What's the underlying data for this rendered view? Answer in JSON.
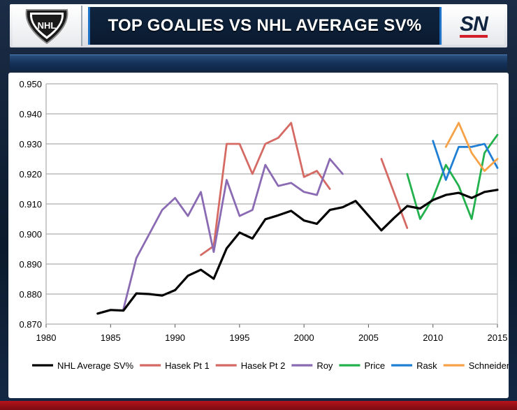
{
  "header": {
    "title": "TOP GOALIES VS NHL AVERAGE SV%",
    "network_logo_text": "SN",
    "league_logo_text": "NHL",
    "colors": {
      "title_band": "#0c2038",
      "accent": "#1e73c8",
      "brand_red": "#d41f2b"
    }
  },
  "chart_data": {
    "type": "line",
    "title": "",
    "xlabel": "",
    "ylabel": "",
    "xlim": [
      1980,
      2015
    ],
    "ylim": [
      0.87,
      0.95
    ],
    "x_ticks": [
      1980,
      1985,
      1990,
      1995,
      2000,
      2005,
      2010,
      2015
    ],
    "y_ticks": [
      "0.870",
      "0.880",
      "0.890",
      "0.900",
      "0.910",
      "0.920",
      "0.930",
      "0.940",
      "0.950"
    ],
    "grid": "horizontal",
    "legend_position": "bottom",
    "series": [
      {
        "name": "NHL Average SV%",
        "color": "#000000",
        "points": [
          [
            1984,
            0.8735
          ],
          [
            1985,
            0.8747
          ],
          [
            1986,
            0.8745
          ],
          [
            1987,
            0.8802
          ],
          [
            1988,
            0.88
          ],
          [
            1989,
            0.8795
          ],
          [
            1990,
            0.8813
          ],
          [
            1991,
            0.8861
          ],
          [
            1992,
            0.8881
          ],
          [
            1993,
            0.8851
          ],
          [
            1994,
            0.8952
          ],
          [
            1995,
            0.9005
          ],
          [
            1996,
            0.8985
          ],
          [
            1997,
            0.9049
          ],
          [
            1998,
            0.9062
          ],
          [
            1999,
            0.9077
          ],
          [
            2000,
            0.9045
          ],
          [
            2001,
            0.9034
          ],
          [
            2002,
            0.908
          ],
          [
            2003,
            0.9089
          ],
          [
            2004,
            0.911
          ],
          [
            2006,
            0.9012
          ],
          [
            2007,
            0.9054
          ],
          [
            2008,
            0.9093
          ],
          [
            2009,
            0.9085
          ],
          [
            2010,
            0.9113
          ],
          [
            2011,
            0.913
          ],
          [
            2012,
            0.9137
          ],
          [
            2013,
            0.912
          ],
          [
            2014,
            0.914
          ],
          [
            2015,
            0.9147
          ]
        ]
      },
      {
        "name": "Hasek Pt 1",
        "color": "#d46a63",
        "points": [
          [
            1992,
            0.893
          ],
          [
            1993,
            0.896
          ],
          [
            1994,
            0.93
          ],
          [
            1995,
            0.93
          ],
          [
            1996,
            0.92
          ],
          [
            1997,
            0.93
          ],
          [
            1998,
            0.932
          ],
          [
            1999,
            0.937
          ],
          [
            2000,
            0.919
          ],
          [
            2001,
            0.921
          ],
          [
            2002,
            0.915
          ]
        ]
      },
      {
        "name": "Hasek Pt 2",
        "color": "#d46a63",
        "points": [
          [
            2006,
            0.925
          ],
          [
            2008,
            0.902
          ]
        ]
      },
      {
        "name": "Roy",
        "color": "#8a6bb3",
        "points": [
          [
            1986,
            0.875
          ],
          [
            1987,
            0.892
          ],
          [
            1988,
            0.9
          ],
          [
            1989,
            0.908
          ],
          [
            1990,
            0.912
          ],
          [
            1991,
            0.906
          ],
          [
            1992,
            0.914
          ],
          [
            1993,
            0.894
          ],
          [
            1994,
            0.918
          ],
          [
            1995,
            0.906
          ],
          [
            1996,
            0.908
          ],
          [
            1997,
            0.923
          ],
          [
            1998,
            0.916
          ],
          [
            1999,
            0.917
          ],
          [
            2000,
            0.914
          ],
          [
            2001,
            0.913
          ],
          [
            2002,
            0.925
          ],
          [
            2003,
            0.92
          ]
        ]
      },
      {
        "name": "Price",
        "color": "#22b14c",
        "points": [
          [
            2008,
            0.92
          ],
          [
            2009,
            0.905
          ],
          [
            2010,
            0.912
          ],
          [
            2011,
            0.923
          ],
          [
            2012,
            0.916
          ],
          [
            2013,
            0.905
          ],
          [
            2014,
            0.927
          ],
          [
            2015,
            0.933
          ]
        ]
      },
      {
        "name": "Rask",
        "color": "#1f7fd4",
        "points": [
          [
            2010,
            0.931
          ],
          [
            2011,
            0.918
          ],
          [
            2012,
            0.929
          ],
          [
            2013,
            0.929
          ],
          [
            2014,
            0.93
          ],
          [
            2015,
            0.922
          ]
        ]
      },
      {
        "name": "Schneider",
        "color": "#f7a247",
        "points": [
          [
            2011,
            0.929
          ],
          [
            2012,
            0.937
          ],
          [
            2013,
            0.927
          ],
          [
            2014,
            0.921
          ],
          [
            2015,
            0.925
          ]
        ]
      }
    ]
  }
}
